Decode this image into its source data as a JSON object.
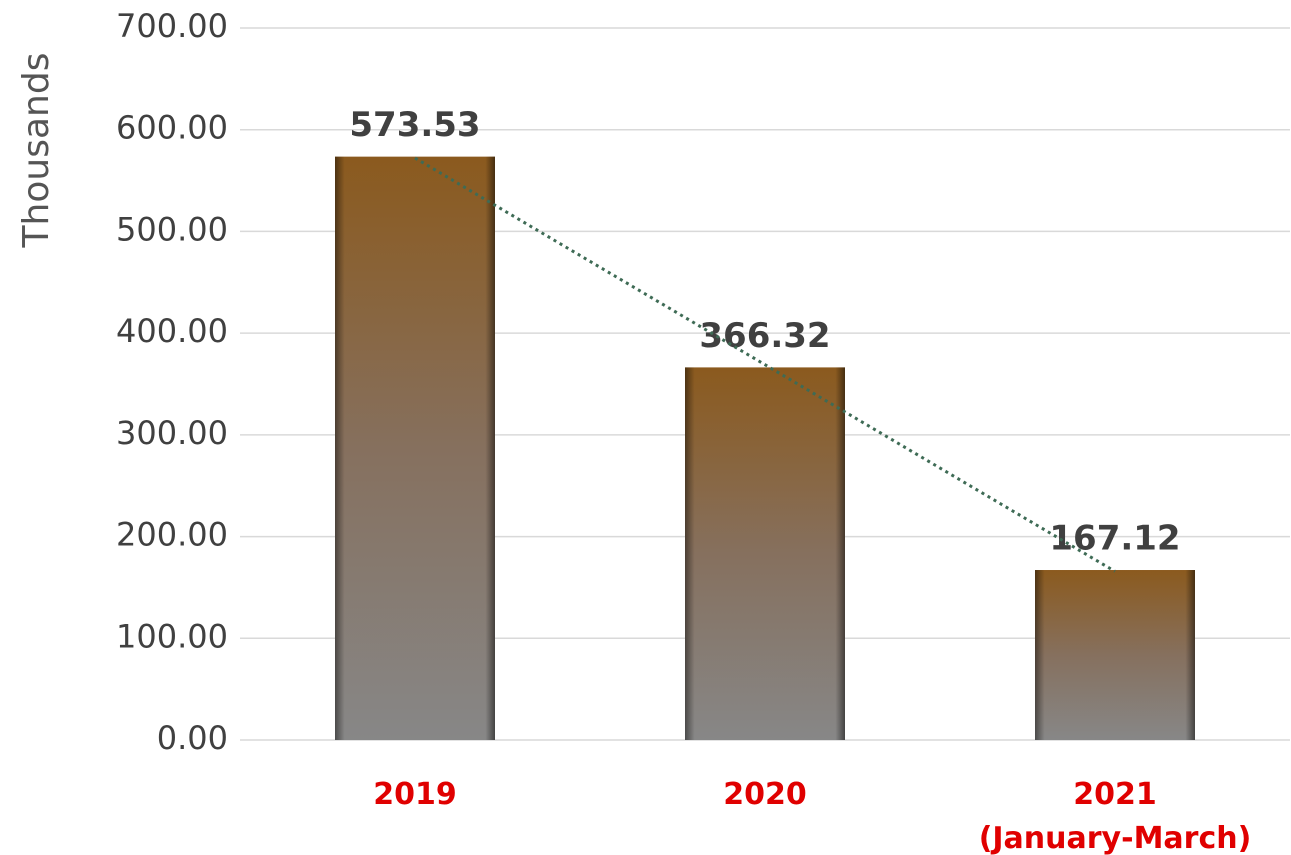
{
  "chart_data": {
    "type": "bar",
    "y_axis_label": "Thousands",
    "categories": [
      "2019",
      "2020",
      "2021\n(January-March)"
    ],
    "values": [
      573.53,
      366.32,
      167.12
    ],
    "ylim": [
      0,
      700
    ],
    "yticks": [
      {
        "value": 0,
        "label": "0.00"
      },
      {
        "value": 100,
        "label": "100.00"
      },
      {
        "value": 200,
        "label": "200.00"
      },
      {
        "value": 300,
        "label": "300.00"
      },
      {
        "value": 400,
        "label": "400.00"
      },
      {
        "value": 500,
        "label": "500.00"
      },
      {
        "value": 600,
        "label": "600.00"
      },
      {
        "value": 700,
        "label": "700.00"
      }
    ],
    "grid": true,
    "trendline": true,
    "trendline_color": "#3e6b55",
    "color": "#8b5a1e"
  }
}
